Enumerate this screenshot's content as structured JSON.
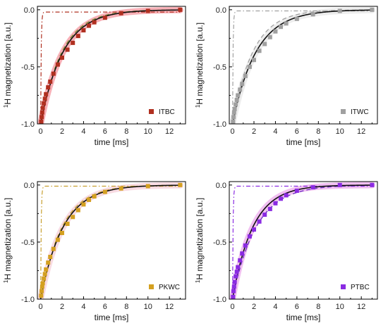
{
  "chart_data": [
    {
      "type": "scatter",
      "legend": "ITBC",
      "legend_position": "bottom-right",
      "xlabel": "time [ms]",
      "ylabel_sup": "1",
      "ylabel": "H magnetization [a.u.]",
      "xlim": [
        -0.3,
        13.5
      ],
      "ylim": [
        -1.0,
        0.03
      ],
      "xticks": [
        "0",
        "2",
        "4",
        "6",
        "8",
        "10",
        "12"
      ],
      "yticks": [
        "-1.0",
        "-0.5",
        "0.0"
      ],
      "grid": false,
      "colors": {
        "marker": "#b03020",
        "band": "#ee5060",
        "fit": "#111111",
        "dashed": "#7a8a30",
        "dashdot": "#b03020"
      },
      "x": [
        0.05,
        0.1,
        0.15,
        0.2,
        0.3,
        0.4,
        0.5,
        0.7,
        0.9,
        1.2,
        1.6,
        2.0,
        2.5,
        3.0,
        3.5,
        4.0,
        4.5,
        5.0,
        6.0,
        7.5,
        10.0,
        13.0
      ],
      "y": [
        -0.98,
        -0.94,
        -0.9,
        -0.86,
        -0.82,
        -0.78,
        -0.74,
        -0.68,
        -0.63,
        -0.56,
        -0.48,
        -0.42,
        -0.35,
        -0.29,
        -0.23,
        -0.18,
        -0.14,
        -0.11,
        -0.07,
        -0.03,
        -0.01,
        0.0
      ],
      "fit_tau": 2.1,
      "dashed_tau": 2.0,
      "dashdot_level": -0.02
    },
    {
      "type": "scatter",
      "legend": "ITWC",
      "legend_position": "bottom-right",
      "xlabel": "time [ms]",
      "ylabel_sup": "1",
      "ylabel": "H magnetization [a.u.]",
      "xlim": [
        -0.3,
        13.5
      ],
      "ylim": [
        -1.0,
        0.03
      ],
      "xticks": [
        "0",
        "2",
        "4",
        "6",
        "8",
        "10",
        "12"
      ],
      "yticks": [
        "-1.0",
        "-0.5",
        "0.0"
      ],
      "grid": false,
      "colors": {
        "marker": "#a0a0a0",
        "band": "#d8d8d8",
        "fit": "#111111",
        "dashed": "#a0a0a0",
        "dashdot": "#a0a0a0"
      },
      "x": [
        0.05,
        0.1,
        0.15,
        0.2,
        0.3,
        0.4,
        0.5,
        0.7,
        0.9,
        1.2,
        1.6,
        2.0,
        2.5,
        3.0,
        3.5,
        4.0,
        4.5,
        5.0,
        6.0,
        7.5,
        10.0,
        13.0
      ],
      "y": [
        -0.98,
        -0.94,
        -0.9,
        -0.87,
        -0.83,
        -0.79,
        -0.75,
        -0.7,
        -0.65,
        -0.58,
        -0.5,
        -0.44,
        -0.36,
        -0.3,
        -0.24,
        -0.19,
        -0.15,
        -0.12,
        -0.08,
        -0.04,
        -0.01,
        0.0
      ],
      "fit_tau": 2.2,
      "dashed_tau": 1.9,
      "dashdot_level": -0.01
    },
    {
      "type": "scatter",
      "legend": "PKWC",
      "legend_position": "bottom-right",
      "xlabel": "time [ms]",
      "ylabel_sup": "1",
      "ylabel": "H magnetization [a.u.]",
      "xlim": [
        -0.3,
        13.5
      ],
      "ylim": [
        -1.0,
        0.03
      ],
      "xticks": [
        "0",
        "2",
        "4",
        "6",
        "8",
        "10",
        "12"
      ],
      "yticks": [
        "-1.0",
        "-0.5",
        "0.0"
      ],
      "grid": false,
      "colors": {
        "marker": "#d4a020",
        "band": "#f0b0c0",
        "fit": "#111111",
        "dashed": "#c8a030",
        "dashdot": "#c8a030"
      },
      "x": [
        0.05,
        0.1,
        0.15,
        0.2,
        0.3,
        0.4,
        0.5,
        0.7,
        0.9,
        1.2,
        1.6,
        2.0,
        2.5,
        3.0,
        3.5,
        4.0,
        4.5,
        5.0,
        6.0,
        7.5,
        10.0,
        13.0
      ],
      "y": [
        -0.97,
        -0.93,
        -0.89,
        -0.86,
        -0.82,
        -0.78,
        -0.74,
        -0.68,
        -0.63,
        -0.56,
        -0.48,
        -0.42,
        -0.34,
        -0.28,
        -0.22,
        -0.17,
        -0.13,
        -0.1,
        -0.06,
        -0.03,
        -0.01,
        0.0
      ],
      "fit_tau": 2.1,
      "dashed_tau": 2.0,
      "dashdot_level": -0.01
    },
    {
      "type": "scatter",
      "legend": "PTBC",
      "legend_position": "bottom-right",
      "xlabel": "time [ms]",
      "ylabel_sup": "1",
      "ylabel": "H magnetization [a.u.]",
      "xlim": [
        -0.3,
        13.5
      ],
      "ylim": [
        -1.0,
        0.03
      ],
      "xticks": [
        "0",
        "2",
        "4",
        "6",
        "8",
        "10",
        "12"
      ],
      "yticks": [
        "-1.0",
        "-0.5",
        "0.0"
      ],
      "grid": false,
      "colors": {
        "marker": "#8a2be2",
        "band": "#e070e0",
        "fit": "#111111",
        "dashed": "#6a2cc0",
        "dashdot": "#8a2be2"
      },
      "x": [
        0.05,
        0.1,
        0.15,
        0.2,
        0.3,
        0.4,
        0.5,
        0.7,
        0.9,
        1.2,
        1.6,
        2.0,
        2.5,
        3.0,
        3.5,
        4.0,
        4.5,
        5.0,
        6.0,
        7.5,
        10.0,
        13.0
      ],
      "y": [
        -0.98,
        -0.93,
        -0.89,
        -0.85,
        -0.8,
        -0.76,
        -0.72,
        -0.66,
        -0.6,
        -0.53,
        -0.45,
        -0.39,
        -0.32,
        -0.26,
        -0.21,
        -0.16,
        -0.12,
        -0.09,
        -0.05,
        -0.02,
        0.0,
        0.0
      ],
      "fit_tau": 1.9,
      "dashed_tau": 2.2,
      "dashdot_level": -0.01
    }
  ]
}
